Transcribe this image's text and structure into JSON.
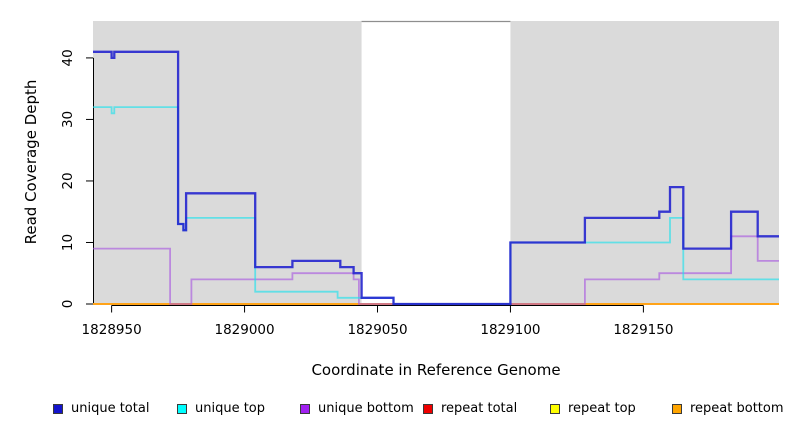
{
  "chart_data": {
    "type": "line",
    "subtype": "step-coverage",
    "title": "",
    "xlabel": "Coordinate in Reference Genome",
    "ylabel": "Read Coverage Depth",
    "xlim": [
      1828943,
      1829201
    ],
    "ylim": [
      0,
      46
    ],
    "xticks": [
      1828950,
      1829000,
      1829050,
      1829100,
      1829150
    ],
    "yticks": [
      0,
      10,
      20,
      30,
      40
    ],
    "grid": false,
    "highlight_color": "#DADADA",
    "gap_border_color": "#8E8E8E",
    "axis_color": "#000000",
    "highlight_regions": [
      {
        "start": 1828943,
        "end": 1829044
      },
      {
        "start": 1829100,
        "end": 1829201
      }
    ],
    "gap_region": {
      "start": 1829044,
      "end": 1829100
    },
    "series": [
      {
        "name": "repeat total",
        "color": "#EE0000",
        "opacity": 1.0,
        "width": 1.5,
        "steps": [
          [
            1828943,
            0
          ],
          [
            1829201,
            0
          ]
        ]
      },
      {
        "name": "repeat top",
        "color": "#FFFF00",
        "opacity": 1.0,
        "width": 1.5,
        "steps": [
          [
            1828943,
            0
          ],
          [
            1829201,
            0
          ]
        ]
      },
      {
        "name": "repeat bottom",
        "color": "#FFA018",
        "opacity": 0.95,
        "width": 1.9,
        "steps": [
          [
            1828943,
            0
          ],
          [
            1829201,
            0
          ]
        ]
      },
      {
        "name": "unique bottom",
        "color": "#A855E0",
        "opacity": 0.62,
        "width": 1.8,
        "steps": [
          [
            1828943,
            9
          ],
          [
            1828972,
            0
          ],
          [
            1828980,
            4
          ],
          [
            1829018,
            5
          ],
          [
            1829041,
            4
          ],
          [
            1829043,
            0
          ],
          [
            1829128,
            4
          ],
          [
            1829156,
            5
          ],
          [
            1829183,
            11
          ],
          [
            1829193,
            7
          ],
          [
            1829201,
            7
          ]
        ]
      },
      {
        "name": "unique top",
        "color": "#18E2EE",
        "opacity": 0.62,
        "width": 1.8,
        "steps": [
          [
            1828943,
            32
          ],
          [
            1828950,
            31
          ],
          [
            1828951,
            32
          ],
          [
            1828975,
            13
          ],
          [
            1828977,
            12
          ],
          [
            1828978,
            14
          ],
          [
            1829004,
            2
          ],
          [
            1829035,
            1
          ],
          [
            1829056,
            0
          ],
          [
            1829100,
            10
          ],
          [
            1829160,
            14
          ],
          [
            1829165,
            4
          ],
          [
            1829201,
            4
          ]
        ]
      },
      {
        "name": "unique total",
        "color": "#2020CE",
        "opacity": 0.88,
        "width": 2.3,
        "steps": [
          [
            1828943,
            41
          ],
          [
            1828950,
            40
          ],
          [
            1828951,
            41
          ],
          [
            1828975,
            13
          ],
          [
            1828977,
            12
          ],
          [
            1828978,
            18
          ],
          [
            1829004,
            6
          ],
          [
            1829018,
            7
          ],
          [
            1829036,
            6
          ],
          [
            1829041,
            5
          ],
          [
            1829044,
            1
          ],
          [
            1829056,
            0
          ],
          [
            1829100,
            10
          ],
          [
            1829128,
            14
          ],
          [
            1829156,
            15
          ],
          [
            1829160,
            19
          ],
          [
            1829165,
            9
          ],
          [
            1829183,
            15
          ],
          [
            1829193,
            11
          ],
          [
            1829201,
            11
          ]
        ]
      }
    ],
    "legend": [
      {
        "label": "unique total",
        "color": "#1414CC"
      },
      {
        "label": "unique top",
        "color": "#00FFFF"
      },
      {
        "label": "unique bottom",
        "color": "#A020F0"
      },
      {
        "label": "repeat total",
        "color": "#EE0000"
      },
      {
        "label": "repeat top",
        "color": "#FFFF00"
      },
      {
        "label": "repeat bottom",
        "color": "#FFA500"
      }
    ],
    "legend_position": "bottom"
  }
}
